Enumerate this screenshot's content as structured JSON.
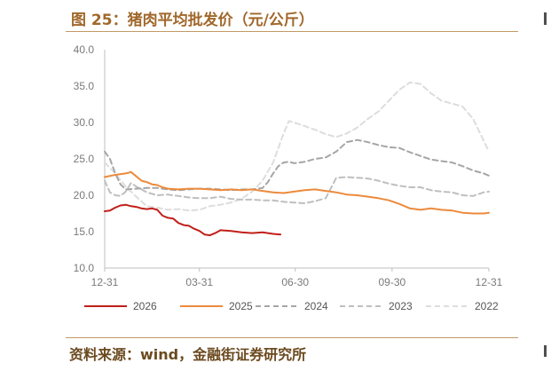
{
  "header": {
    "title": "图 25：猪肉平均批发价（元/公斤）"
  },
  "footer": {
    "source": "资料来源：wind，金融街证券研究所"
  },
  "chart_data": {
    "type": "line",
    "title": "图 25：猪肉平均批发价（元/公斤）",
    "xlabel": "",
    "ylabel": "",
    "x_tick_labels": [
      "12-31",
      "03-31",
      "06-30",
      "09-30",
      "12-31"
    ],
    "x_tick_days": [
      0,
      90,
      181,
      273,
      365
    ],
    "y_ticks": [
      "10.0",
      "15.0",
      "20.0",
      "25.0",
      "30.0",
      "35.0",
      "40.0"
    ],
    "ylim": [
      10,
      40
    ],
    "grid": false,
    "legend_position": "bottom",
    "series": [
      {
        "name": "2026",
        "color": "#c0201a",
        "dash": "solid",
        "width": 2,
        "x": [
          0,
          5,
          10,
          15,
          20,
          25,
          30,
          35,
          40,
          45,
          50,
          55,
          60,
          65,
          70,
          75,
          80,
          85,
          90,
          95,
          100,
          105,
          110,
          120,
          130,
          140,
          150,
          160,
          167
        ],
        "y": [
          17.8,
          17.9,
          18.3,
          18.6,
          18.7,
          18.5,
          18.4,
          18.2,
          18.1,
          18.2,
          18.0,
          17.2,
          16.9,
          16.8,
          16.2,
          15.9,
          15.8,
          15.4,
          15.1,
          14.6,
          14.5,
          14.8,
          15.2,
          15.1,
          14.9,
          14.8,
          14.9,
          14.7,
          14.6
        ]
      },
      {
        "name": "2025",
        "color": "#ec8a3c",
        "dash": "solid",
        "width": 2,
        "x": [
          0,
          10,
          20,
          25,
          30,
          35,
          40,
          45,
          50,
          55,
          60,
          70,
          80,
          90,
          100,
          110,
          120,
          130,
          140,
          150,
          160,
          170,
          180,
          190,
          200,
          210,
          220,
          230,
          240,
          250,
          260,
          270,
          280,
          290,
          300,
          310,
          320,
          330,
          340,
          350,
          360,
          365
        ],
        "y": [
          22.5,
          22.8,
          23.0,
          23.2,
          22.6,
          22.0,
          21.8,
          21.5,
          21.4,
          21.1,
          20.9,
          20.8,
          20.9,
          20.9,
          20.8,
          20.7,
          20.8,
          20.7,
          20.8,
          20.6,
          20.4,
          20.3,
          20.5,
          20.7,
          20.8,
          20.6,
          20.4,
          20.1,
          20.0,
          19.8,
          19.6,
          19.3,
          18.8,
          18.2,
          18.0,
          18.2,
          18.0,
          17.9,
          17.6,
          17.5,
          17.5,
          17.6
        ]
      },
      {
        "name": "2024",
        "color": "#a6a6a6",
        "dash": "6,4",
        "width": 2,
        "x": [
          0,
          5,
          10,
          15,
          20,
          30,
          40,
          50,
          60,
          70,
          80,
          90,
          100,
          110,
          120,
          130,
          140,
          150,
          155,
          160,
          165,
          170,
          175,
          180,
          185,
          190,
          200,
          210,
          220,
          230,
          240,
          250,
          260,
          270,
          280,
          290,
          300,
          310,
          320,
          330,
          340,
          350,
          360,
          365
        ],
        "y": [
          26.0,
          25.0,
          23.0,
          21.5,
          20.8,
          20.9,
          21.0,
          21.0,
          20.8,
          20.7,
          20.8,
          20.9,
          20.9,
          20.8,
          20.7,
          20.8,
          20.8,
          21.0,
          21.8,
          23.0,
          24.0,
          24.5,
          24.6,
          24.4,
          24.5,
          24.6,
          25.0,
          25.2,
          26.0,
          27.3,
          27.6,
          27.3,
          26.9,
          26.6,
          26.5,
          25.9,
          25.4,
          24.9,
          24.7,
          24.5,
          24.0,
          23.4,
          23.0,
          22.7
        ]
      },
      {
        "name": "2023",
        "color": "#bfbfbf",
        "dash": "6,4",
        "width": 2,
        "x": [
          0,
          5,
          10,
          15,
          20,
          25,
          30,
          40,
          50,
          60,
          70,
          80,
          90,
          100,
          110,
          120,
          130,
          140,
          150,
          160,
          170,
          180,
          190,
          200,
          210,
          220,
          230,
          240,
          250,
          260,
          270,
          280,
          290,
          300,
          310,
          320,
          330,
          340,
          350,
          360,
          365
        ],
        "y": [
          22.0,
          20.4,
          20.0,
          19.9,
          20.5,
          21.7,
          21.2,
          20.4,
          20.0,
          20.1,
          19.9,
          19.7,
          19.6,
          19.6,
          19.8,
          19.5,
          19.4,
          19.4,
          19.3,
          19.3,
          19.1,
          19.0,
          18.9,
          19.2,
          19.6,
          22.4,
          22.5,
          22.4,
          22.3,
          22.0,
          21.6,
          21.3,
          21.1,
          21.1,
          20.7,
          20.5,
          20.4,
          20.0,
          19.9,
          20.4,
          20.5
        ]
      },
      {
        "name": "2022",
        "color": "#dddddd",
        "dash": "6,4",
        "width": 2,
        "x": [
          0,
          10,
          20,
          30,
          40,
          50,
          60,
          70,
          80,
          90,
          100,
          110,
          120,
          130,
          140,
          150,
          160,
          165,
          170,
          175,
          180,
          190,
          200,
          210,
          220,
          230,
          240,
          250,
          260,
          270,
          280,
          290,
          300,
          310,
          320,
          330,
          340,
          350,
          360,
          365
        ],
        "y": [
          24.5,
          23.0,
          21.2,
          19.8,
          18.5,
          18.3,
          18.0,
          18.1,
          17.9,
          18.0,
          18.5,
          18.7,
          19.0,
          19.5,
          20.5,
          22.0,
          24.5,
          26.5,
          28.5,
          30.2,
          30.0,
          29.5,
          29.0,
          28.4,
          28.0,
          28.5,
          29.3,
          30.5,
          31.5,
          33.0,
          34.5,
          35.5,
          35.3,
          34.0,
          33.0,
          32.6,
          32.2,
          30.5,
          27.5,
          26.0
        ]
      }
    ]
  }
}
